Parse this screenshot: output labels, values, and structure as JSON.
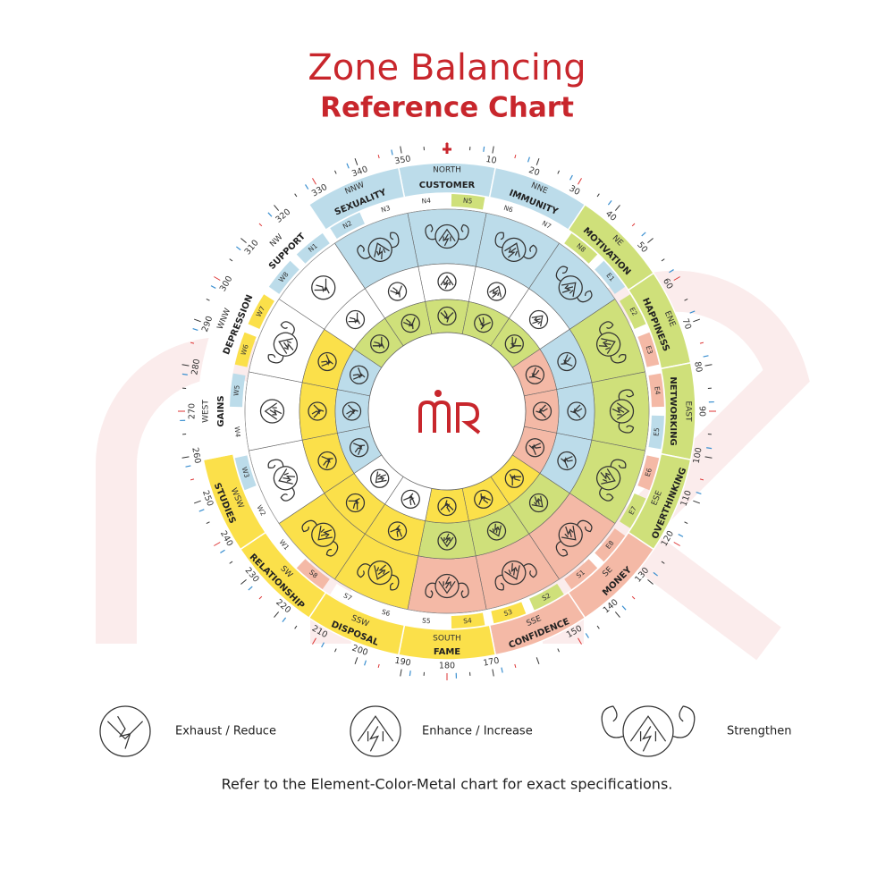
{
  "header": {
    "title": "Zone Balancing",
    "subtitle": "Reference Chart"
  },
  "zones": [
    {
      "direction": "NORTH",
      "name": "CUSTOMER",
      "color": "#bcdcea",
      "ring_colors": [
        "#bcdcea",
        "#ffffff",
        "#cfe07a"
      ],
      "icons": [
        "strengthen",
        "enhance",
        "exhaust"
      ]
    },
    {
      "direction": "NNE",
      "name": "IMMUNITY",
      "color": "#bcdcea",
      "ring_colors": [
        "#bcdcea",
        "#ffffff",
        "#cfe07a"
      ],
      "icons": [
        "strengthen",
        "enhance",
        "exhaust"
      ]
    },
    {
      "direction": "NE",
      "name": "MOTIVATION",
      "color": "#cfe07a",
      "ring_colors": [
        "#bcdcea",
        "#ffffff",
        "#cfe07a"
      ],
      "icons": [
        "strengthen",
        "enhance",
        "exhaust"
      ]
    },
    {
      "direction": "ENE",
      "name": "HAPPINESS",
      "color": "#cfe07a",
      "ring_colors": [
        "#cfe07a",
        "#bcdcea",
        "#f4b9a6"
      ],
      "icons": [
        "strengthen",
        "exhaust",
        "exhaust"
      ]
    },
    {
      "direction": "EAST",
      "name": "NETWORKING",
      "color": "#cfe07a",
      "ring_colors": [
        "#cfe07a",
        "#bcdcea",
        "#f4b9a6"
      ],
      "icons": [
        "strengthen",
        "exhaust",
        "exhaust"
      ]
    },
    {
      "direction": "ESE",
      "name": "OVERTHINKING",
      "color": "#cfe07a",
      "ring_colors": [
        "#cfe07a",
        "#bcdcea",
        "#f4b9a6"
      ],
      "icons": [
        "strengthen",
        "exhaust",
        "exhaust"
      ]
    },
    {
      "direction": "SE",
      "name": "MONEY",
      "color": "#f4b9a6",
      "ring_colors": [
        "#f4b9a6",
        "#cfe07a",
        "#fbe04a"
      ],
      "icons": [
        "strengthen",
        "enhance",
        "exhaust"
      ]
    },
    {
      "direction": "SSE",
      "name": "CONFIDENCE",
      "color": "#f4b9a6",
      "ring_colors": [
        "#f4b9a6",
        "#cfe07a",
        "#fbe04a"
      ],
      "icons": [
        "strengthen",
        "enhance",
        "exhaust"
      ]
    },
    {
      "direction": "SOUTH",
      "name": "FAME",
      "color": "#fbe04a",
      "ring_colors": [
        "#f4b9a6",
        "#cfe07a",
        "#fbe04a"
      ],
      "icons": [
        "strengthen",
        "enhance",
        "exhaust"
      ]
    },
    {
      "direction": "SSW",
      "name": "DISPOSAL",
      "color": "#fbe04a",
      "ring_colors": [
        "#fbe04a",
        "#fbe04a",
        "#ffffff"
      ],
      "icons": [
        "strengthen",
        "exhaust",
        "exhaust"
      ]
    },
    {
      "direction": "SW",
      "name": "RELATIONSHIP",
      "color": "#fbe04a",
      "ring_colors": [
        "#fbe04a",
        "#fbe04a",
        "#ffffff"
      ],
      "icons": [
        "strengthen",
        "exhaust",
        "enhance"
      ]
    },
    {
      "direction": "WSW",
      "name": "STUDIES",
      "color": "#fbe04a",
      "ring_colors": [
        "#ffffff",
        "#fbe04a",
        "#bcdcea"
      ],
      "icons": [
        "strengthen",
        "exhaust",
        "exhaust"
      ]
    },
    {
      "direction": "WEST",
      "name": "GAINS",
      "color": "#ffffff",
      "ring_colors": [
        "#ffffff",
        "#fbe04a",
        "#bcdcea"
      ],
      "icons": [
        "enhance",
        "exhaust",
        "exhaust"
      ]
    },
    {
      "direction": "WNW",
      "name": "DEPRESSION",
      "color": "#ffffff",
      "ring_colors": [
        "#ffffff",
        "#fbe04a",
        "#bcdcea"
      ],
      "icons": [
        "strengthen",
        "exhaust",
        "exhaust"
      ]
    },
    {
      "direction": "NW",
      "name": "SUPPORT",
      "color": "#ffffff",
      "ring_colors": [
        "#ffffff",
        "#ffffff",
        "#cfe07a"
      ],
      "icons": [
        "exhaust",
        "exhaust",
        "exhaust"
      ]
    },
    {
      "direction": "NNW",
      "name": "SEXUALITY",
      "color": "#bcdcea",
      "ring_colors": [
        "#bcdcea",
        "#ffffff",
        "#cfe07a"
      ],
      "icons": [
        "strengthen",
        "exhaust",
        "exhaust"
      ]
    }
  ],
  "padas": [
    {
      "label": "N1",
      "color": "#bcdcea"
    },
    {
      "label": "N2",
      "color": "#bcdcea"
    },
    {
      "label": "N3",
      "color": "#ffffff"
    },
    {
      "label": "N4",
      "color": "#ffffff"
    },
    {
      "label": "N5",
      "color": "#cfe07a"
    },
    {
      "label": "N6",
      "color": "#ffffff"
    },
    {
      "label": "N7",
      "color": "#ffffff"
    },
    {
      "label": "N8",
      "color": "#cfe07a"
    },
    {
      "label": "E1",
      "color": "#bcdcea"
    },
    {
      "label": "E2",
      "color": "#cfe07a"
    },
    {
      "label": "E3",
      "color": "#f4b9a6"
    },
    {
      "label": "E4",
      "color": "#f4b9a6"
    },
    {
      "label": "E5",
      "color": "#bcdcea"
    },
    {
      "label": "E6",
      "color": "#f4b9a6"
    },
    {
      "label": "E7",
      "color": "#cfe07a"
    },
    {
      "label": "E8",
      "color": "#f4b9a6"
    },
    {
      "label": "S1",
      "color": "#f4b9a6"
    },
    {
      "label": "S2",
      "color": "#cfe07a"
    },
    {
      "label": "S3",
      "color": "#fbe04a"
    },
    {
      "label": "S4",
      "color": "#fbe04a"
    },
    {
      "label": "S5",
      "color": "#ffffff"
    },
    {
      "label": "S6",
      "color": "#ffffff"
    },
    {
      "label": "S7",
      "color": "#ffffff"
    },
    {
      "label": "S8",
      "color": "#f4b9a6"
    },
    {
      "label": "W1",
      "color": "#ffffff"
    },
    {
      "label": "W2",
      "color": "#ffffff"
    },
    {
      "label": "W3",
      "color": "#bcdcea"
    },
    {
      "label": "W4",
      "color": "#ffffff"
    },
    {
      "label": "W5",
      "color": "#bcdcea"
    },
    {
      "label": "W6",
      "color": "#fbe04a"
    },
    {
      "label": "W7",
      "color": "#fbe04a"
    },
    {
      "label": "W8",
      "color": "#bcdcea"
    }
  ],
  "degrees": [
    10,
    20,
    30,
    40,
    50,
    60,
    70,
    80,
    90,
    100,
    110,
    120,
    130,
    140,
    150,
    170,
    180,
    190,
    200,
    210,
    220,
    230,
    240,
    250,
    260,
    270,
    280,
    290,
    300,
    310,
    320,
    330,
    340,
    350
  ],
  "legend": [
    {
      "icon": "exhaust",
      "label": "Exhaust / Reduce"
    },
    {
      "icon": "enhance",
      "label": "Enhance / Increase"
    },
    {
      "icon": "strengthen",
      "label": "Strengthen"
    }
  ],
  "note": "Refer to the Element-Color-Metal chart for exact specifications."
}
